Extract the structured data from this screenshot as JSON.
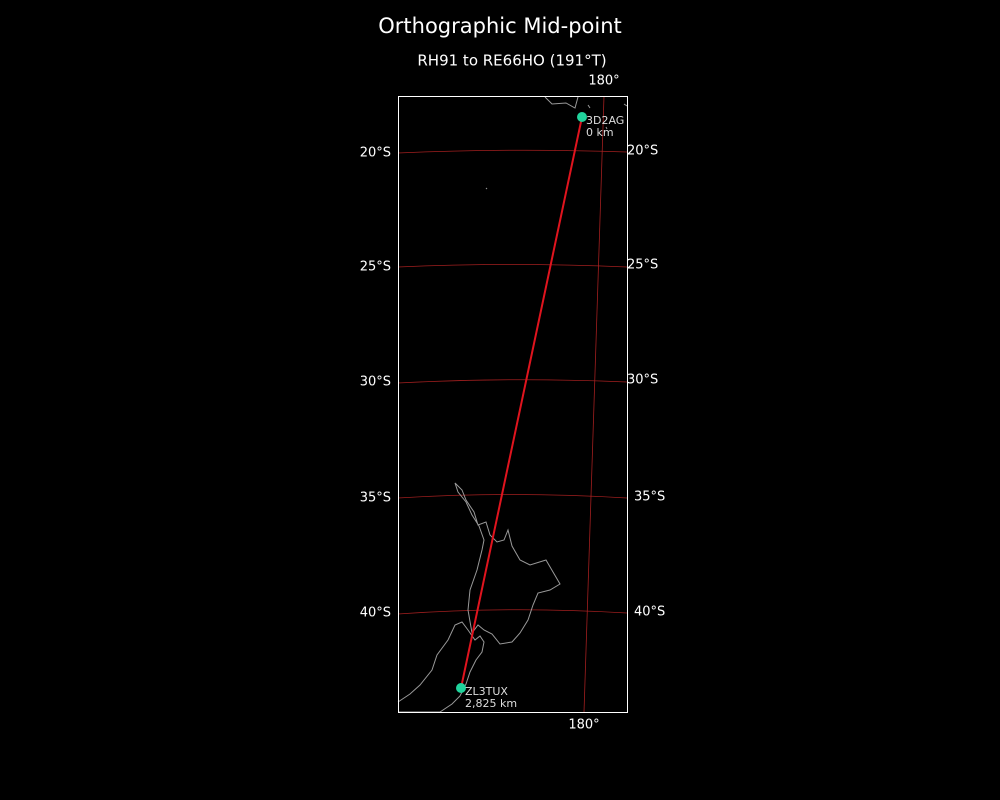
{
  "title": "Orthographic Mid-point",
  "subtitle": "RH91 to RE66HO (191°T)",
  "lat_labels_left": [
    "20°S",
    "25°S",
    "30°S",
    "35°S",
    "40°S"
  ],
  "lat_labels_right": [
    "20°S",
    "25°S",
    "30°S",
    "35°S",
    "40°S"
  ],
  "lon_labels": {
    "top": "180°",
    "bottom": "180°"
  },
  "stations": [
    {
      "call": "3D2AG",
      "distance": "0 km"
    },
    {
      "call": "ZL3TUX",
      "distance": "2,825 km"
    }
  ]
}
